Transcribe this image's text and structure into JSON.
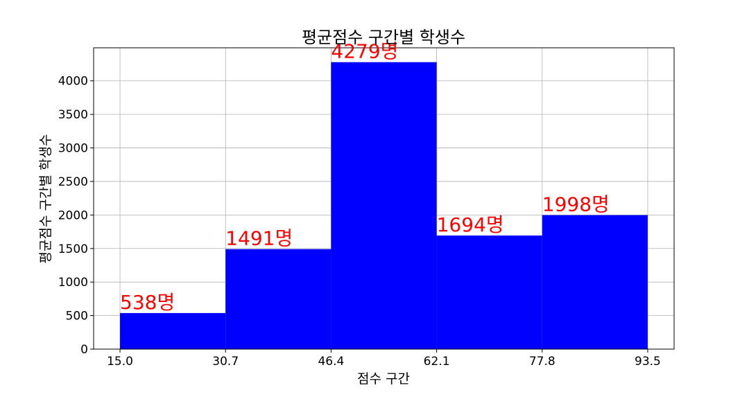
{
  "chart_data": {
    "type": "bar",
    "title": "평균점수 구간별 학생수",
    "xlabel": "점수 구간",
    "ylabel": "평균점수 구간별 학생수",
    "bin_edges": [
      15.0,
      30.7,
      46.4,
      62.1,
      77.8,
      93.5
    ],
    "x_tick_labels": [
      "15.0",
      "30.7",
      "46.4",
      "62.1",
      "77.8",
      "93.5"
    ],
    "values": [
      538,
      1491,
      4279,
      1694,
      1998
    ],
    "data_labels": [
      "538명",
      "1491명",
      "4279명",
      "1694명",
      "1998명"
    ],
    "y_ticks": [
      0,
      500,
      1000,
      1500,
      2000,
      2500,
      3000,
      3500,
      4000
    ],
    "y_tick_labels": [
      "0",
      "500",
      "1000",
      "1500",
      "2000",
      "2500",
      "3000",
      "3500",
      "4000"
    ],
    "xlim": [
      11.075,
      97.425
    ],
    "ylim": [
      0,
      4493
    ],
    "grid": true,
    "colors": {
      "bar": "#0000ff",
      "data_label": "#ff0000",
      "grid": "#b0b0b0"
    }
  }
}
